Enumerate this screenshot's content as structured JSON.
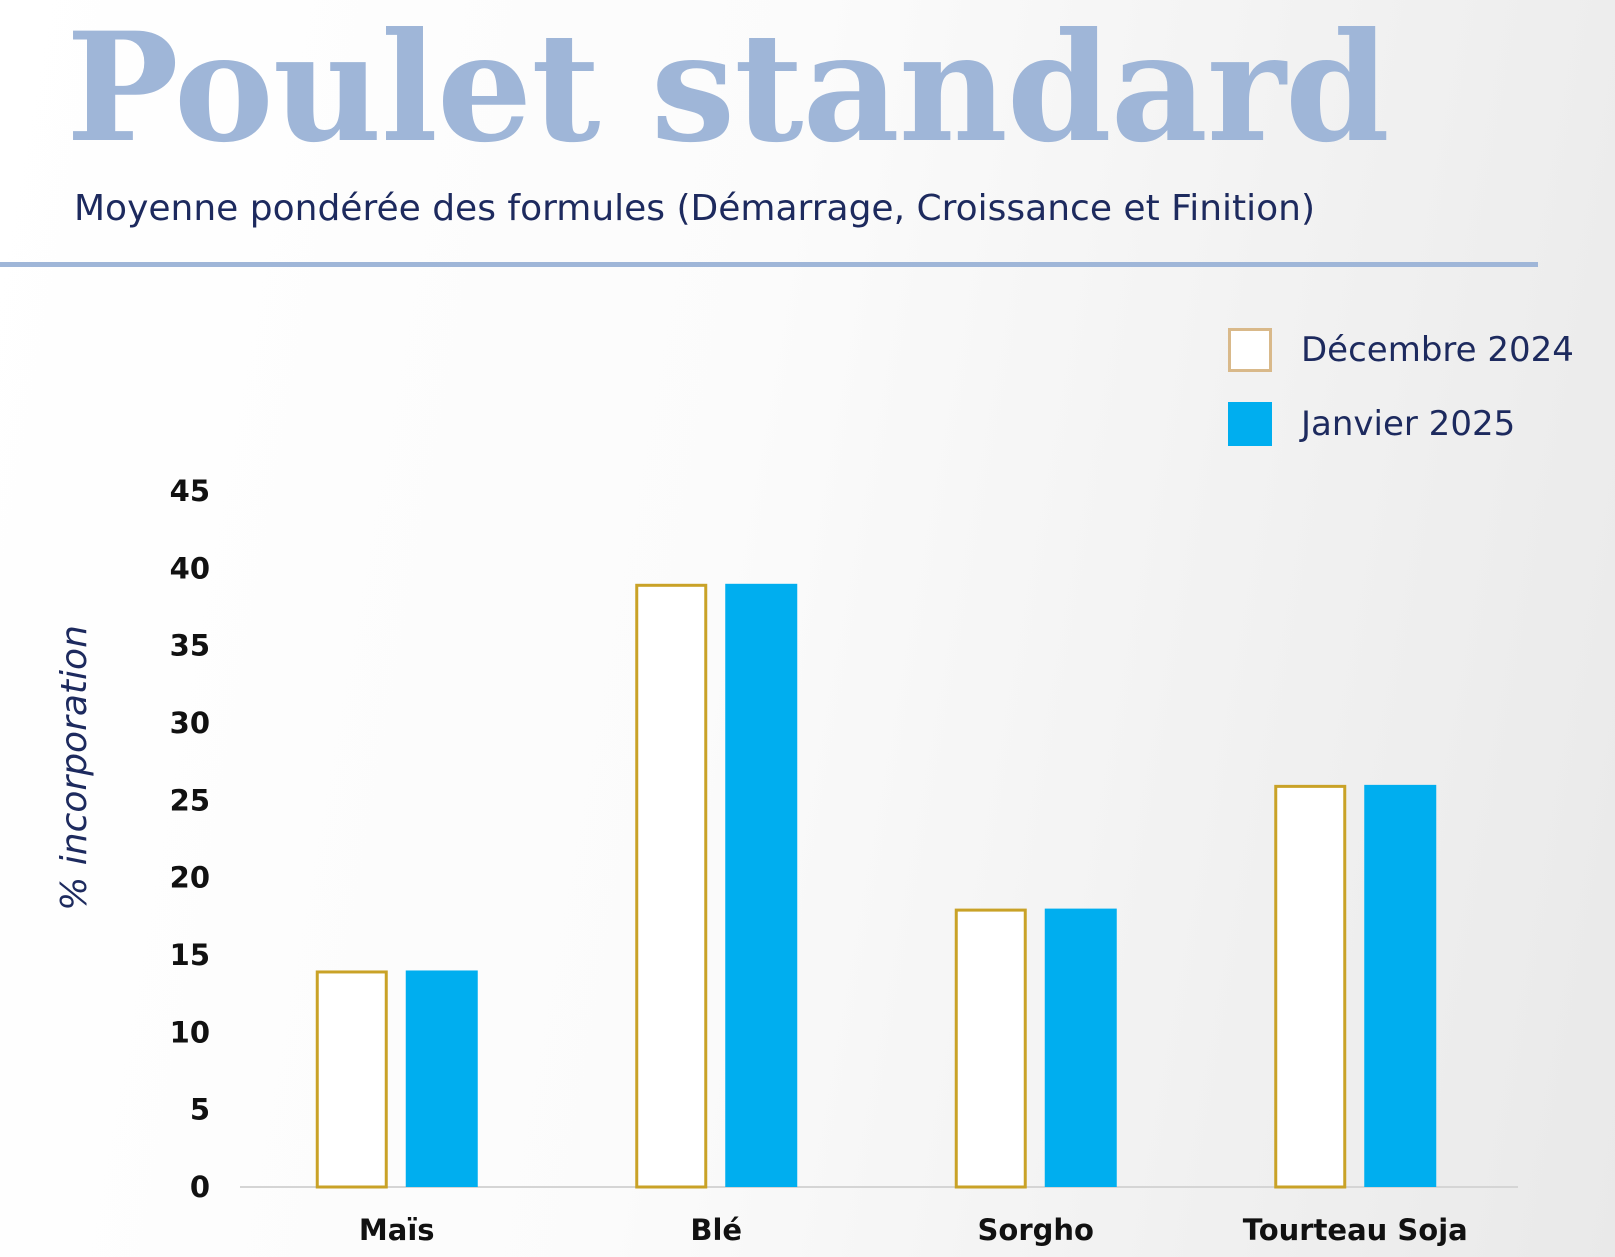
{
  "header": {
    "title": "Poulet standard",
    "subtitle": "Moyenne pondérée des formules (Démarrage, Croissance et Finition)"
  },
  "legend": {
    "items": [
      {
        "label": "Décembre 2024",
        "style": "outline",
        "color": "#c9a227"
      },
      {
        "label": "Janvier 2025",
        "style": "filled",
        "color": "#00aeef"
      }
    ]
  },
  "chart_data": {
    "type": "bar",
    "title": "Poulet standard",
    "subtitle": "Moyenne pondérée des formules (Démarrage, Croissance et Finition)",
    "xlabel": "",
    "ylabel": "% incorporation",
    "ylim": [
      0,
      45
    ],
    "yticks": [
      0,
      5,
      10,
      15,
      20,
      25,
      30,
      35,
      40,
      45
    ],
    "categories": [
      "Maïs",
      "Blé",
      "Sorgho",
      "Tourteau Soja"
    ],
    "series": [
      {
        "name": "Décembre 2024",
        "values": [
          14,
          39,
          18,
          26
        ],
        "color": "#c9a227",
        "style": "outline"
      },
      {
        "name": "Janvier 2025",
        "values": [
          14,
          39,
          18,
          26
        ],
        "color": "#00aeef",
        "style": "filled"
      }
    ],
    "grid": false,
    "legend_position": "top-right"
  }
}
